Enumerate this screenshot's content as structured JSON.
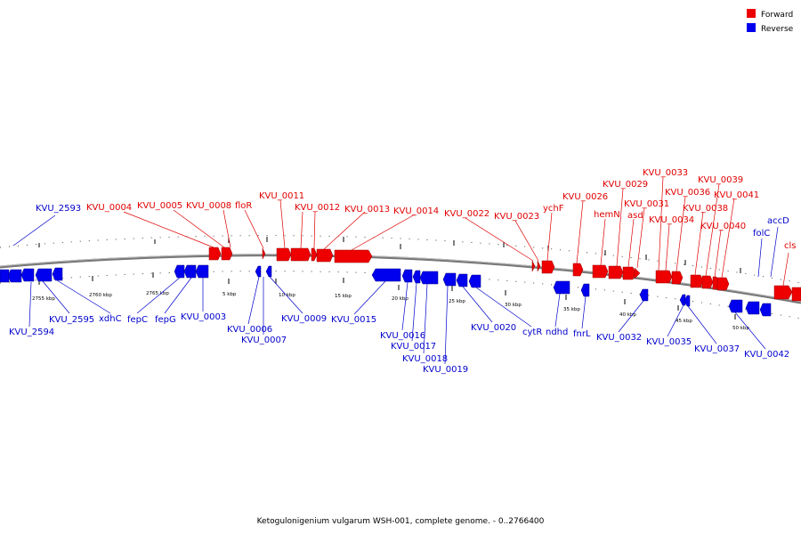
{
  "caption": "Ketogulonigenium vulgarum WSH-001, complete genome. - 0..2766400",
  "legend": [
    {
      "label": "Forward",
      "color": "#ee0000"
    },
    {
      "label": "Reverse",
      "color": "#0000ee"
    }
  ],
  "colors": {
    "forward": "#ee0000",
    "reverse": "#0000ee",
    "backbone": "#777777"
  },
  "tick_labels": [
    "2755 kbp",
    "2760 kbp",
    "2765 kbp",
    "5 kbp",
    "10 kbp",
    "15 kbp",
    "20 kbp",
    "25 kbp",
    "30 kbp",
    "35 kbp",
    "40 kbp",
    "45 kbp",
    "50 kbp"
  ],
  "forward_labels": [
    "KVU_0004",
    "KVU_0005",
    "KVU_0008",
    "floR",
    "KVU_0011",
    "KVU_0012",
    "KVU_0013",
    "KVU_0014",
    "KVU_0022",
    "KVU_0023",
    "ychF",
    "KVU_0026",
    "hemN",
    "KVU_0029",
    "asd",
    "KVU_0031",
    "KVU_0033",
    "KVU_0034",
    "KVU_0036",
    "KVU_0038",
    "KVU_0039",
    "KVU_0040",
    "KVU_0041",
    "cls"
  ],
  "reverse_labels": [
    "KVU_2593",
    "accD",
    "folC",
    "KVU_2594",
    "KVU_2595",
    "xdhC",
    "fepC",
    "fepG",
    "KVU_0003",
    "KVU_0006",
    "KVU_0007",
    "KVU_0009",
    "KVU_0015",
    "KVU_0016",
    "KVU_0017",
    "KVU_0018",
    "KVU_0019",
    "KVU_0020",
    "cytR",
    "ndhd",
    "fnrL",
    "KVU_0032",
    "KVU_0035",
    "KVU_0037",
    "KVU_0042"
  ]
}
